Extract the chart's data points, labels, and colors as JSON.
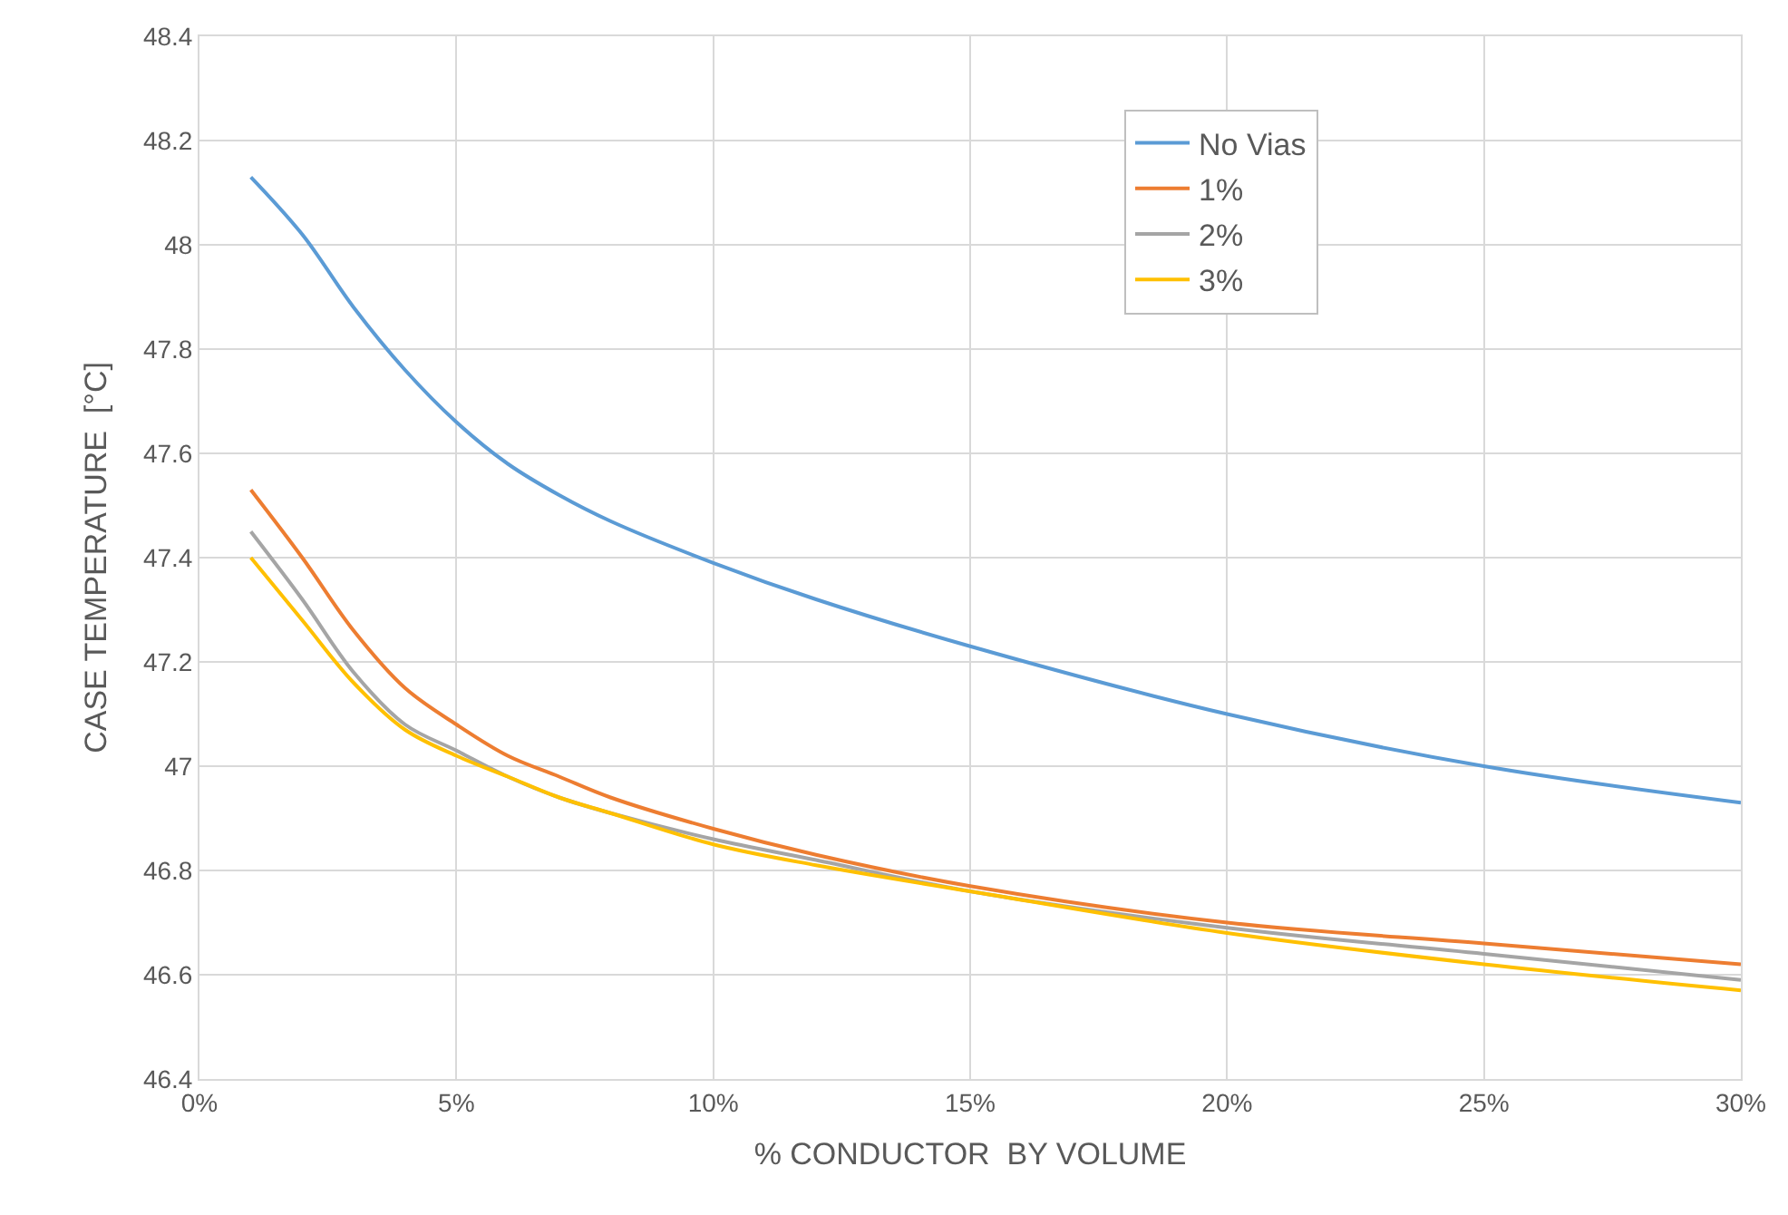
{
  "chart_data": {
    "type": "line",
    "xlabel": "% CONDUCTOR  BY VOLUME",
    "ylabel": "CASE TEMPERATURE  [°C]",
    "x": [
      1,
      2,
      3,
      4,
      5,
      6,
      7,
      8,
      10,
      12,
      15,
      20,
      25,
      30
    ],
    "series": [
      {
        "name": "No Vias",
        "color": "#5b9bd5",
        "values": [
          48.13,
          48.02,
          47.88,
          47.76,
          47.66,
          47.58,
          47.52,
          47.47,
          47.39,
          47.32,
          47.23,
          47.1,
          47.0,
          46.93
        ]
      },
      {
        "name": "1%",
        "color": "#ed7d31",
        "values": [
          47.53,
          47.4,
          47.26,
          47.15,
          47.08,
          47.02,
          46.98,
          46.94,
          46.88,
          46.83,
          46.77,
          46.7,
          46.66,
          46.62
        ]
      },
      {
        "name": "2%",
        "color": "#a5a5a5",
        "values": [
          47.45,
          47.32,
          47.18,
          47.08,
          47.03,
          46.98,
          46.94,
          46.91,
          46.86,
          46.82,
          46.76,
          46.69,
          46.64,
          46.59
        ]
      },
      {
        "name": "3%",
        "color": "#ffc000",
        "values": [
          47.4,
          47.28,
          47.16,
          47.07,
          47.02,
          46.98,
          46.94,
          46.91,
          46.85,
          46.81,
          46.76,
          46.68,
          46.62,
          46.57
        ]
      }
    ],
    "xlim": [
      0,
      30
    ],
    "xticks": [
      {
        "value": 0,
        "label": "0%"
      },
      {
        "value": 5,
        "label": "5%"
      },
      {
        "value": 10,
        "label": "10%"
      },
      {
        "value": 15,
        "label": "15%"
      },
      {
        "value": 20,
        "label": "20%"
      },
      {
        "value": 25,
        "label": "25%"
      },
      {
        "value": 30,
        "label": "30%"
      }
    ],
    "ylim": [
      46.4,
      48.4
    ],
    "yticks": [
      46.4,
      46.6,
      46.8,
      47,
      47.2,
      47.4,
      47.6,
      47.8,
      48,
      48.2,
      48.4
    ],
    "grid": true,
    "legend": "top right",
    "line_style": "solid"
  }
}
